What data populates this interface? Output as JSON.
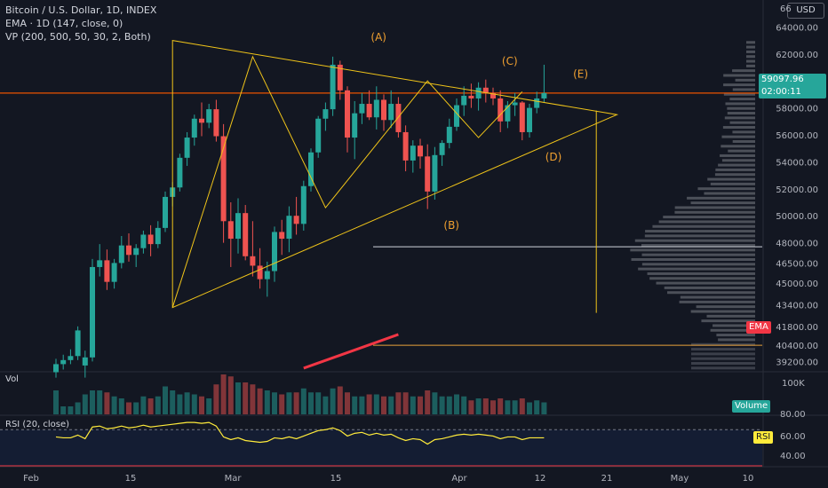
{
  "header": {
    "title": "Bitcoin / U.S. Dollar, 1D, INDEX",
    "ema_label": "EMA · 1D (147, close, 0)",
    "vp_label": "VP (200, 500, 50, 30, 2, Both)",
    "currency_button": "USD",
    "top_scale_value": "66"
  },
  "price_tag": {
    "value": "59097.96",
    "countdown": "02:00:11",
    "color": "#26a69a"
  },
  "ema_tag": {
    "label": "EMA",
    "color": "#f23645"
  },
  "volume_pane": {
    "label": "Vol",
    "axis_label": "100K",
    "tag": "Volume"
  },
  "rsi_pane": {
    "label": "RSI (20, close)",
    "ticks": [
      "80.00",
      "60.00",
      "40.00"
    ],
    "tag": "RSI"
  },
  "pattern_labels": [
    "(A)",
    "(B)",
    "(C)",
    "(D)",
    "(E)"
  ],
  "chart_data": {
    "type": "candlestick",
    "x_ticks": [
      "Feb",
      "15",
      "Mar",
      "15",
      "Apr",
      "12",
      "21",
      "May",
      "10"
    ],
    "y_ticks": [
      64000,
      62000,
      60000,
      58000,
      56000,
      54000,
      52000,
      50000,
      48000,
      46500,
      45000,
      43400,
      41800,
      40400,
      39200
    ],
    "ylim": [
      38500,
      66000
    ],
    "current_price": 59097.96,
    "candles": [
      [
        38400,
        39400,
        38000,
        39000
      ],
      [
        39000,
        39700,
        38600,
        39300
      ],
      [
        39300,
        40100,
        39000,
        39600
      ],
      [
        39600,
        41800,
        39300,
        41500
      ],
      [
        38900,
        40000,
        38000,
        39500
      ],
      [
        39500,
        46800,
        39200,
        46200
      ],
      [
        46200,
        47900,
        45500,
        46700
      ],
      [
        46700,
        47500,
        44500,
        45100
      ],
      [
        45100,
        46800,
        44600,
        46500
      ],
      [
        46500,
        48500,
        46100,
        47800
      ],
      [
        47800,
        48700,
        46600,
        47100
      ],
      [
        47100,
        47900,
        46200,
        47600
      ],
      [
        47600,
        48900,
        47200,
        48600
      ],
      [
        48600,
        49300,
        47000,
        47900
      ],
      [
        47900,
        49600,
        47600,
        49100
      ],
      [
        49100,
        51800,
        48800,
        51400
      ],
      [
        51400,
        52500,
        50700,
        52100
      ],
      [
        52100,
        54600,
        51800,
        54300
      ],
      [
        54300,
        56200,
        53700,
        55800
      ],
      [
        55800,
        57500,
        55200,
        57200
      ],
      [
        57200,
        58400,
        55900,
        56900
      ],
      [
        56900,
        58300,
        56500,
        57900
      ],
      [
        57900,
        58600,
        55500,
        55900
      ],
      [
        55900,
        56800,
        48000,
        49600
      ],
      [
        49600,
        51000,
        46200,
        48300
      ],
      [
        48300,
        51300,
        47200,
        50200
      ],
      [
        50200,
        50800,
        46700,
        47000
      ],
      [
        47000,
        49600,
        45500,
        46300
      ],
      [
        46300,
        47600,
        44600,
        45300
      ],
      [
        45300,
        46600,
        44000,
        45900
      ],
      [
        45900,
        49200,
        45100,
        48800
      ],
      [
        48800,
        49700,
        47100,
        48300
      ],
      [
        48300,
        50700,
        47300,
        50000
      ],
      [
        50000,
        51400,
        48600,
        49400
      ],
      [
        49400,
        52600,
        48900,
        52200
      ],
      [
        52200,
        55000,
        51800,
        54700
      ],
      [
        54700,
        57400,
        54300,
        57200
      ],
      [
        57200,
        58400,
        56300,
        57900
      ],
      [
        57900,
        61800,
        57400,
        61200
      ],
      [
        61200,
        61500,
        58600,
        59300
      ],
      [
        59300,
        59600,
        54700,
        55800
      ],
      [
        55800,
        58500,
        54200,
        57600
      ],
      [
        57600,
        59100,
        56800,
        58300
      ],
      [
        58300,
        59300,
        57100,
        57300
      ],
      [
        57300,
        59600,
        56400,
        58600
      ],
      [
        58600,
        59000,
        56300,
        57100
      ],
      [
        57100,
        59300,
        56500,
        58300
      ],
      [
        58300,
        58800,
        55800,
        56200
      ],
      [
        56200,
        56700,
        53300,
        54100
      ],
      [
        54100,
        55600,
        53200,
        55200
      ],
      [
        55200,
        55700,
        53500,
        54400
      ],
      [
        54400,
        55300,
        50500,
        51800
      ],
      [
        51800,
        55100,
        51200,
        54500
      ],
      [
        54500,
        55600,
        53700,
        55400
      ],
      [
        55400,
        57200,
        55000,
        56600
      ],
      [
        56600,
        58700,
        56300,
        58200
      ],
      [
        58200,
        59600,
        57400,
        58900
      ],
      [
        58900,
        59800,
        58000,
        58700
      ],
      [
        58700,
        59900,
        57800,
        59500
      ],
      [
        59500,
        60100,
        58400,
        59100
      ],
      [
        59100,
        59500,
        58200,
        58700
      ],
      [
        58700,
        59300,
        56200,
        57000
      ],
      [
        57000,
        58500,
        56500,
        58200
      ],
      [
        58200,
        59100,
        57400,
        58400
      ],
      [
        58400,
        58500,
        55600,
        56200
      ],
      [
        56200,
        58300,
        55800,
        58000
      ],
      [
        58000,
        59200,
        57600,
        58700
      ],
      [
        58700,
        61200,
        58400,
        59097.96
      ]
    ],
    "volume_max": 100000,
    "volumes": [
      60000,
      20000,
      20000,
      30000,
      50000,
      60000,
      60000,
      55000,
      45000,
      40000,
      30000,
      30000,
      45000,
      40000,
      45000,
      70000,
      60000,
      50000,
      55000,
      50000,
      45000,
      40000,
      75000,
      100000,
      95000,
      80000,
      80000,
      75000,
      65000,
      60000,
      55000,
      50000,
      55000,
      55000,
      65000,
      55000,
      55000,
      45000,
      65000,
      70000,
      55000,
      45000,
      45000,
      50000,
      50000,
      45000,
      45000,
      55000,
      55000,
      45000,
      45000,
      60000,
      55000,
      45000,
      45000,
      50000,
      45000,
      35000,
      40000,
      40000,
      35000,
      40000,
      35000,
      35000,
      40000,
      30000,
      35000,
      30000
    ],
    "rsi": [
      62,
      61,
      61,
      64,
      60,
      73,
      74,
      71,
      72,
      74,
      72,
      73,
      75,
      73,
      74,
      75,
      76,
      77,
      78,
      78,
      77,
      78,
      74,
      62,
      59,
      61,
      58,
      57,
      56,
      57,
      61,
      60,
      62,
      60,
      63,
      66,
      69,
      70,
      72,
      69,
      63,
      66,
      67,
      64,
      66,
      64,
      65,
      61,
      58,
      60,
      59,
      54,
      59,
      60,
      62,
      64,
      65,
      64,
      65,
      64,
      63,
      60,
      62,
      62,
      59,
      61,
      61,
      61
    ],
    "rsi_ylim": [
      30,
      85
    ],
    "rsi_levels": [
      70,
      30
    ],
    "volume_profile_range": [
      38500,
      63000
    ],
    "volume_profile_peak": 47200,
    "horizontal_lines": [
      47700,
      40400
    ],
    "ema_line": {
      "from": [
        34,
        38700
      ],
      "to": [
        47,
        41200
      ]
    },
    "pattern": {
      "triangle": [
        [
          16,
          63000
        ],
        [
          16,
          43200
        ],
        [
          77,
          57500
        ]
      ],
      "zigzag": [
        [
          16,
          43200
        ],
        [
          27,
          61800
        ],
        [
          37,
          50600
        ],
        [
          51,
          60000
        ],
        [
          58,
          55800
        ],
        [
          64,
          59200
        ]
      ],
      "abcde_points": [
        [
          26,
          61800
        ],
        [
          36,
          50600
        ],
        [
          44,
          60000
        ],
        [
          50,
          55800
        ],
        [
          53,
          59200
        ]
      ],
      "projection": [
        [
          51,
          57800
        ],
        [
          51,
          42800
        ]
      ]
    }
  }
}
